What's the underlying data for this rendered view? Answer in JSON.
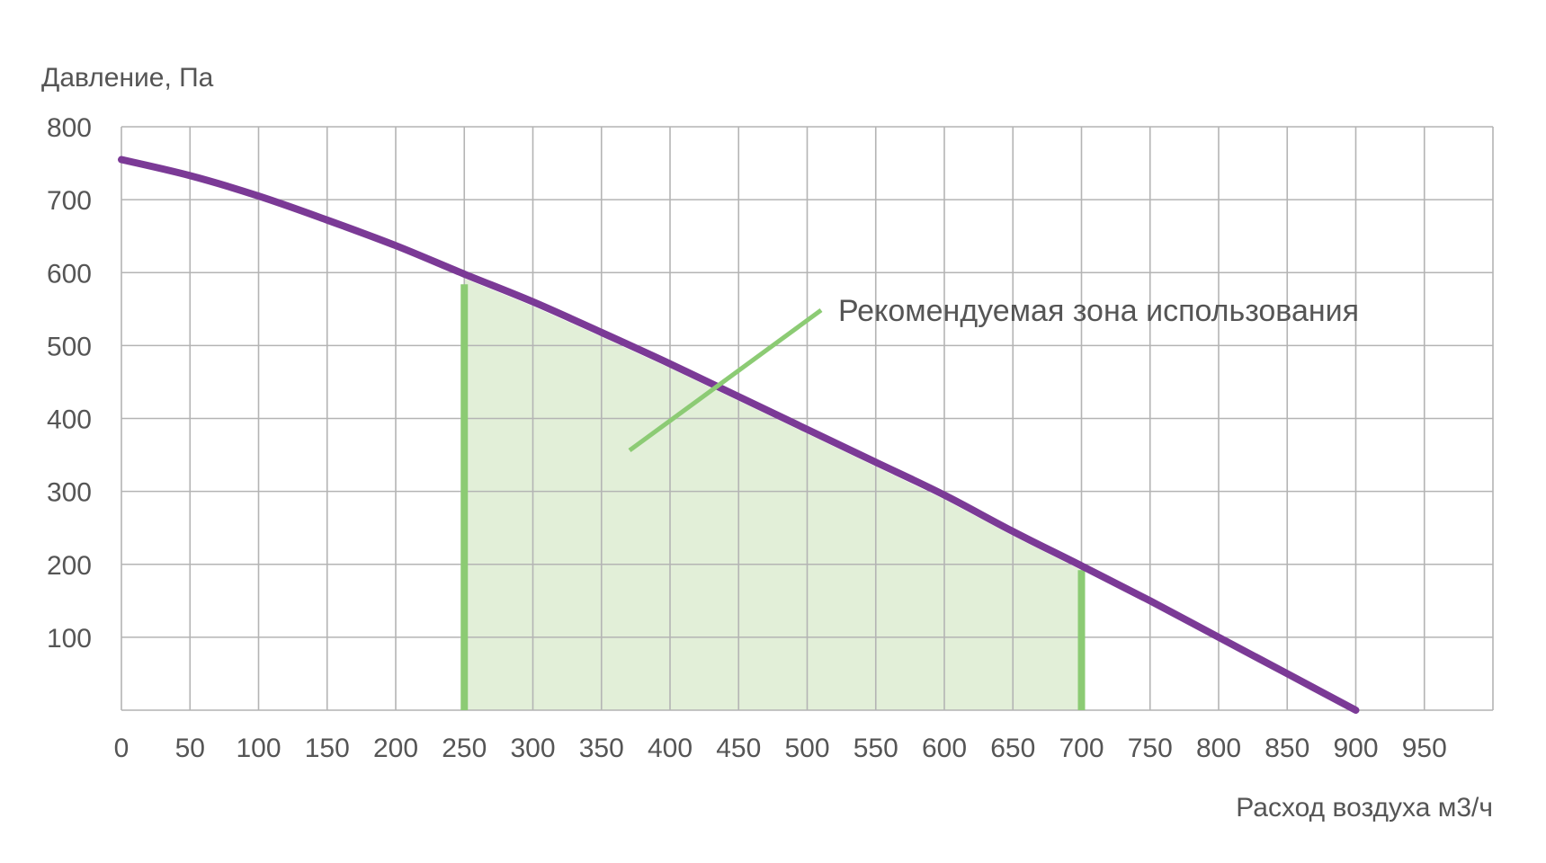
{
  "chart_data": {
    "type": "line",
    "xlabel": "Расход воздуха м3/ч",
    "ylabel": "Давление, Па",
    "xlim": [
      0,
      1000
    ],
    "ylim": [
      0,
      800
    ],
    "x_ticks": [
      "0",
      "50",
      "100",
      "150",
      "200",
      "250",
      "300",
      "350",
      "400",
      "450",
      "500",
      "550",
      "600",
      "650",
      "700",
      "750",
      "800",
      "850",
      "900",
      "950"
    ],
    "y_ticks": [
      "100",
      "200",
      "300",
      "400",
      "500",
      "600",
      "700",
      "800"
    ],
    "grid": true,
    "series": [
      {
        "color": "#7b3a96",
        "x": [
          0,
          50,
          100,
          150,
          200,
          250,
          300,
          350,
          400,
          450,
          500,
          550,
          600,
          650,
          700,
          750,
          800,
          850,
          900
        ],
        "y": [
          755,
          733,
          705,
          672,
          637,
          598,
          560,
          518,
          475,
          430,
          385,
          340,
          295,
          245,
          198,
          150,
          100,
          50,
          0
        ]
      }
    ],
    "recommended_zone": {
      "label": "Рекомендуемая зона использования",
      "x_from": 250,
      "x_to": 700,
      "fill_color": "#e2efd8",
      "edge_color": "#8ccb74"
    }
  }
}
